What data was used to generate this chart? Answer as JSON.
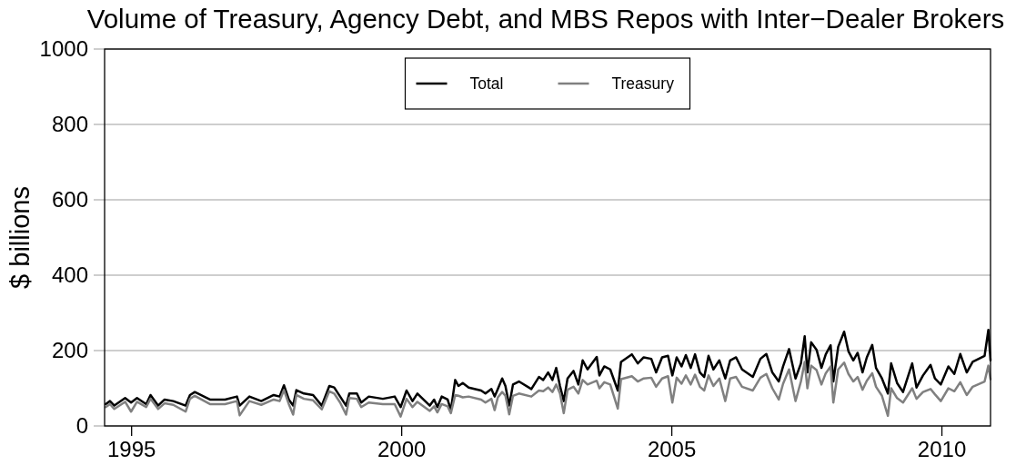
{
  "chart_data": {
    "type": "line",
    "title": "Volume of Treasury, Agency Debt, and MBS Repos with Inter−Dealer Brokers",
    "ylabel": "$ billions",
    "x": [
      1994.52,
      1994.6,
      1994.68,
      1994.88,
      1994.99,
      1995.1,
      1995.27,
      1995.35,
      1995.49,
      1995.61,
      1995.77,
      1996.0,
      1996.08,
      1996.17,
      1996.45,
      1996.73,
      1996.95,
      1997.0,
      1997.18,
      1997.4,
      1997.63,
      1997.74,
      1997.82,
      1997.91,
      1997.99,
      1998.05,
      1998.19,
      1998.36,
      1998.52,
      1998.66,
      1998.75,
      1998.86,
      1998.97,
      1999.03,
      1999.17,
      1999.25,
      1999.39,
      1999.65,
      1999.87,
      1999.98,
      2000.09,
      2000.2,
      2000.29,
      2000.52,
      2000.6,
      2000.66,
      2000.74,
      2000.85,
      2000.91,
      2000.99,
      2001.05,
      2001.13,
      2001.24,
      2001.47,
      2001.55,
      2001.66,
      2001.72,
      2001.78,
      2001.86,
      2001.92,
      2001.99,
      2002.06,
      2002.17,
      2002.4,
      2002.54,
      2002.62,
      2002.71,
      2002.79,
      2002.86,
      2002.93,
      2003.0,
      2003.07,
      2003.18,
      2003.27,
      2003.35,
      2003.44,
      2003.61,
      2003.66,
      2003.75,
      2003.86,
      2004.0,
      2004.06,
      2004.26,
      2004.37,
      2004.48,
      2004.62,
      2004.71,
      2004.82,
      2004.93,
      2005.01,
      2005.09,
      2005.18,
      2005.26,
      2005.35,
      2005.43,
      2005.52,
      2005.6,
      2005.68,
      2005.77,
      2005.88,
      2005.99,
      2006.08,
      2006.19,
      2006.3,
      2006.5,
      2006.64,
      2006.75,
      2006.86,
      2006.98,
      2007.06,
      2007.17,
      2007.29,
      2007.39,
      2007.46,
      2007.51,
      2007.58,
      2007.68,
      2007.77,
      2007.85,
      2007.94,
      2007.99,
      2008.08,
      2008.19,
      2008.27,
      2008.36,
      2008.44,
      2008.53,
      2008.61,
      2008.71,
      2008.78,
      2008.89,
      2009.0,
      2009.06,
      2009.17,
      2009.28,
      2009.45,
      2009.53,
      2009.65,
      2009.79,
      2009.87,
      2009.98,
      2010.12,
      2010.23,
      2010.34,
      2010.46,
      2010.57,
      2010.79,
      2010.86,
      2010.9
    ],
    "xlim": [
      1994.5,
      2010.9
    ],
    "xticks": [
      1995,
      2000,
      2005,
      2010
    ],
    "ylim": [
      0,
      1000
    ],
    "yticks": [
      0,
      200,
      400,
      600,
      800,
      1000
    ],
    "grid": "y",
    "legend": "top",
    "line_style": "solid",
    "series": [
      {
        "name": "Total",
        "color": "#000000",
        "values": [
          58,
          66,
          54,
          74,
          62,
          74,
          58,
          82,
          54,
          70,
          66,
          54,
          82,
          90,
          70,
          70,
          78,
          54,
          78,
          66,
          82,
          78,
          108,
          70,
          54,
          95,
          86,
          82,
          54,
          106,
          102,
          78,
          54,
          86,
          86,
          62,
          78,
          72,
          78,
          50,
          94,
          66,
          86,
          54,
          70,
          50,
          78,
          70,
          42,
          122,
          106,
          114,
          102,
          94,
          86,
          98,
          78,
          98,
          126,
          106,
          54,
          110,
          118,
          98,
          130,
          122,
          142,
          122,
          154,
          106,
          66,
          126,
          146,
          110,
          174,
          150,
          183,
          134,
          158,
          150,
          94,
          170,
          190,
          166,
          182,
          178,
          142,
          182,
          186,
          134,
          182,
          158,
          188,
          154,
          190,
          142,
          130,
          186,
          150,
          174,
          126,
          174,
          182,
          150,
          130,
          178,
          191,
          142,
          118,
          158,
          204,
          126,
          166,
          238,
          142,
          222,
          202,
          154,
          190,
          214,
          118,
          210,
          250,
          198,
          174,
          194,
          142,
          182,
          215,
          154,
          126,
          86,
          166,
          114,
          90,
          166,
          102,
          134,
          162,
          126,
          110,
          158,
          138,
          191,
          142,
          170,
          186,
          255,
          174
        ]
      },
      {
        "name": "Treasury",
        "color": "#808080",
        "values": [
          50,
          58,
          45,
          64,
          38,
          64,
          50,
          72,
          45,
          60,
          56,
          38,
          72,
          80,
          58,
          58,
          66,
          28,
          66,
          56,
          70,
          66,
          95,
          58,
          30,
          82,
          72,
          68,
          44,
          92,
          86,
          62,
          30,
          74,
          72,
          50,
          62,
          58,
          58,
          25,
          72,
          50,
          64,
          40,
          52,
          36,
          58,
          52,
          34,
          82,
          80,
          76,
          78,
          70,
          62,
          72,
          42,
          76,
          90,
          80,
          31,
          80,
          86,
          78,
          94,
          92,
          102,
          90,
          110,
          86,
          34,
          96,
          104,
          86,
          122,
          110,
          120,
          100,
          116,
          110,
          46,
          124,
          132,
          118,
          126,
          128,
          104,
          126,
          132,
          62,
          128,
          112,
          134,
          110,
          136,
          104,
          94,
          134,
          106,
          126,
          66,
          126,
          130,
          104,
          94,
          128,
          138,
          100,
          70,
          112,
          150,
          66,
          118,
          170,
          100,
          160,
          148,
          110,
          140,
          158,
          62,
          150,
          168,
          138,
          118,
          130,
          96,
          120,
          140,
          104,
          80,
          27,
          100,
          74,
          62,
          100,
          72,
          90,
          98,
          84,
          66,
          100,
          92,
          116,
          82,
          104,
          118,
          160,
          124
        ]
      }
    ]
  }
}
